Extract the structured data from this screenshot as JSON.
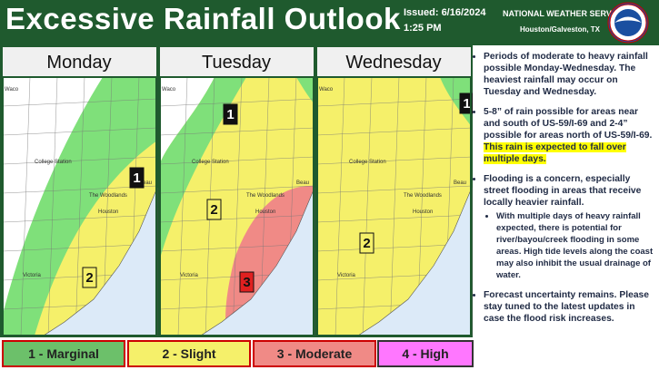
{
  "header": {
    "title": "Excessive Rainfall Outlook",
    "issued": "Issued: 6/16/2024",
    "time": "1:25 PM",
    "org": "NATIONAL WEATHER SERVICE",
    "office": "Houston/Galveston, TX"
  },
  "cities": [
    "Waco",
    "College Station",
    "The Woodlands",
    "Houston",
    "Victoria",
    "Beau"
  ],
  "panels": [
    {
      "day": "Monday",
      "risks": [
        "1",
        "2"
      ]
    },
    {
      "day": "Tuesday",
      "risks": [
        "1",
        "2",
        "3"
      ]
    },
    {
      "day": "Wednesday",
      "risks": [
        "1",
        "2"
      ]
    }
  ],
  "bullets": [
    {
      "text": "Periods of moderate to heavy rainfall possible Monday-Wednesday.  The heaviest rainfall may occur on Tuesday and Wednesday."
    },
    {
      "text": "5-8” of rain possible for areas near and south of US-59/I-69 and 2-4” possible for areas north of US-59/I-69.",
      "highlight": "This rain is expected to fall over multiple days."
    },
    {
      "text": "Flooding is a concern, especially street flooding in areas that receive locally heavier rainfall.",
      "sub": "With multiple days of heavy rainfall expected, there is potential for river/bayou/creek flooding in some areas. High tide levels along the coast may also inhibit the usual drainage of water."
    },
    {
      "text": "Forecast uncertainty remains. Please stay tuned to the latest updates in case the flood risk increases."
    }
  ],
  "legend": [
    "1 - Marginal",
    "2 - Slight",
    "3 - Moderate",
    "4 - High"
  ]
}
